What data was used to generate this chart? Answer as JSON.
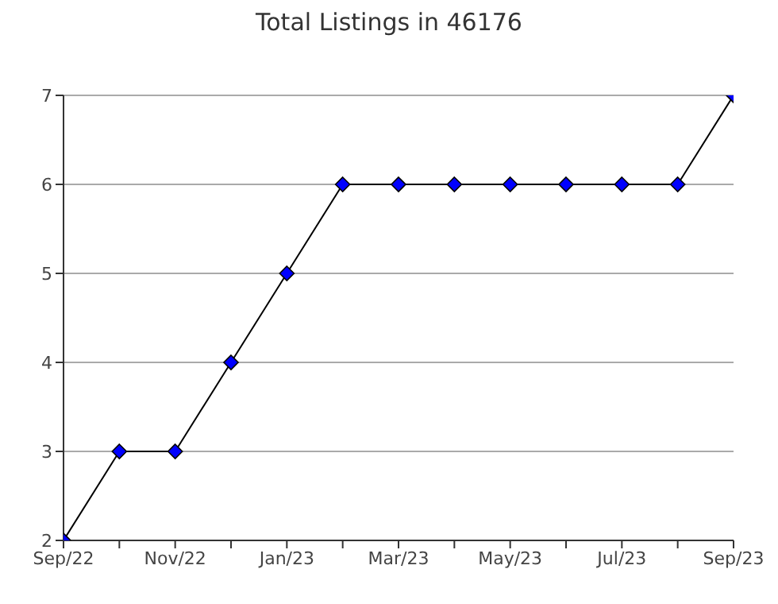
{
  "chart_data": {
    "type": "line",
    "title": "Total Listings in 46176",
    "x": [
      "2022-09",
      "2022-10",
      "2022-11",
      "2022-12",
      "2023-01",
      "2023-02",
      "2023-03",
      "2023-04",
      "2023-05",
      "2023-06",
      "2023-07",
      "2023-08",
      "2023-09"
    ],
    "series": [
      {
        "color": "#0000ff",
        "values": [
          2,
          3,
          3,
          4,
          5,
          6,
          6,
          6,
          6,
          6,
          6,
          6,
          7
        ]
      }
    ],
    "xlim": [
      "2022-09",
      "2023-09"
    ],
    "xticks": [
      {
        "value": "2022-09",
        "label": "Sep/22"
      },
      {
        "value": "2022-10",
        "label": null
      },
      {
        "value": "2022-11",
        "label": "Nov/22"
      },
      {
        "value": "2022-12",
        "label": null
      },
      {
        "value": "2023-01",
        "label": "Jan/23"
      },
      {
        "value": "2023-02",
        "label": null
      },
      {
        "value": "2023-03",
        "label": "Mar/23"
      },
      {
        "value": "2023-04",
        "label": null
      },
      {
        "value": "2023-05",
        "label": "May/23"
      },
      {
        "value": "2023-06",
        "label": null
      },
      {
        "value": "2023-07",
        "label": "Jul/23"
      },
      {
        "value": "2023-08",
        "label": null
      },
      {
        "value": "2023-09",
        "label": "Sep/23"
      }
    ],
    "ylim": [
      2,
      7
    ],
    "yticks": [
      2,
      3,
      4,
      5,
      6,
      7
    ],
    "grid": "y",
    "marker": "diamond",
    "line_style": "solid",
    "legend": false
  }
}
